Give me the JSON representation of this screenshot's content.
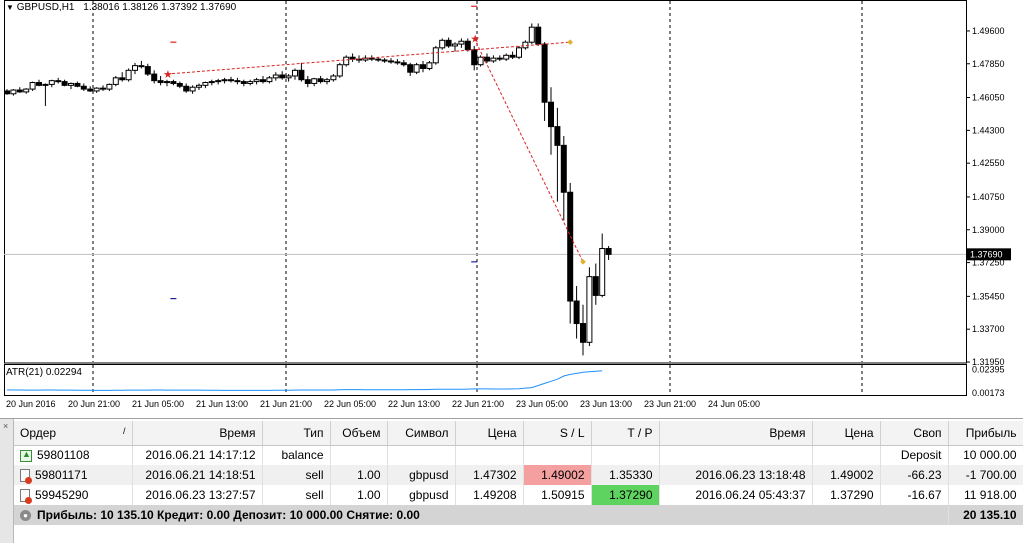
{
  "chart": {
    "symbol": "GBPUSD,H1",
    "ohlc": "1.38016 1.38126 1.37392 1.37690",
    "atr_label": "ATR(21) 0.02294",
    "current_price": "1.37690",
    "colors": {
      "bull_fill": "#ffffff",
      "bear_fill": "#000000",
      "candle_stroke": "#000000",
      "trade_line": "#dd2222",
      "bid_line": "#c0c0c0",
      "atr_line": "#1e90ff",
      "marker_buy": "#1e1ea0",
      "marker_sell": "#dd2222"
    }
  },
  "chart_data": {
    "type": "candlestick",
    "title": "GBPUSD,H1",
    "y_ticks": [
      "1.49600",
      "1.47850",
      "1.46050",
      "1.44300",
      "1.42550",
      "1.40750",
      "1.39000",
      "1.37250",
      "1.35450",
      "1.33700",
      "1.31950"
    ],
    "ylim": [
      1.3195,
      1.5045
    ],
    "x_ticks": [
      "20 Jun 2016",
      "20 Jun 21:00",
      "21 Jun 05:00",
      "21 Jun 13:00",
      "21 Jun 21:00",
      "22 Jun 05:00",
      "22 Jun 13:00",
      "22 Jun 21:00",
      "23 Jun 05:00",
      "23 Jun 13:00",
      "23 Jun 21:00",
      "24 Jun 05:00"
    ],
    "period_separators": [
      "20 Jun 21:00",
      "21 Jun 21:00",
      "22 Jun 21:00",
      "23 Jun 21:00"
    ],
    "atr_ticks": [
      "0.02395",
      "0.00173"
    ],
    "atr_range": [
      0.0,
      0.0256
    ],
    "candles": [
      [
        1.464,
        1.465,
        1.462,
        1.4625
      ],
      [
        1.4625,
        1.465,
        1.4615,
        1.4645
      ],
      [
        1.4645,
        1.466,
        1.463,
        1.4635
      ],
      [
        1.4635,
        1.4655,
        1.4625,
        1.465
      ],
      [
        1.465,
        1.469,
        1.464,
        1.4685
      ],
      [
        1.4685,
        1.47,
        1.4665,
        1.467
      ],
      [
        1.467,
        1.468,
        1.456,
        1.4675
      ],
      [
        1.4675,
        1.47,
        1.466,
        1.4695
      ],
      [
        1.4695,
        1.471,
        1.468,
        1.469
      ],
      [
        1.469,
        1.47,
        1.4665,
        1.467
      ],
      [
        1.467,
        1.4685,
        1.465,
        1.468
      ],
      [
        1.468,
        1.469,
        1.466,
        1.4665
      ],
      [
        1.4665,
        1.468,
        1.464,
        1.465
      ],
      [
        1.465,
        1.4665,
        1.4635,
        1.464
      ],
      [
        1.464,
        1.466,
        1.463,
        1.4655
      ],
      [
        1.4655,
        1.467,
        1.464,
        1.465
      ],
      [
        1.465,
        1.468,
        1.464,
        1.4675
      ],
      [
        1.4675,
        1.472,
        1.4665,
        1.471
      ],
      [
        1.471,
        1.474,
        1.469,
        1.47
      ],
      [
        1.47,
        1.476,
        1.469,
        1.475
      ],
      [
        1.475,
        1.479,
        1.473,
        1.4775
      ],
      [
        1.4775,
        1.48,
        1.476,
        1.477
      ],
      [
        1.477,
        1.4785,
        1.472,
        1.473
      ],
      [
        1.473,
        1.475,
        1.468,
        1.4695
      ],
      [
        1.4695,
        1.472,
        1.467,
        1.4685
      ],
      [
        1.4685,
        1.47,
        1.4665,
        1.469
      ],
      [
        1.469,
        1.47,
        1.467,
        1.468
      ],
      [
        1.468,
        1.469,
        1.4655,
        1.4665
      ],
      [
        1.4665,
        1.468,
        1.463,
        1.464
      ],
      [
        1.464,
        1.467,
        1.4625,
        1.466
      ],
      [
        1.466,
        1.468,
        1.4645,
        1.467
      ],
      [
        1.467,
        1.469,
        1.4655,
        1.4685
      ],
      [
        1.4685,
        1.47,
        1.467,
        1.469
      ],
      [
        1.469,
        1.4705,
        1.4675,
        1.4695
      ],
      [
        1.4695,
        1.471,
        1.468,
        1.47
      ],
      [
        1.47,
        1.4715,
        1.4685,
        1.4695
      ],
      [
        1.4695,
        1.471,
        1.4675,
        1.469
      ],
      [
        1.469,
        1.47,
        1.4665,
        1.468
      ],
      [
        1.468,
        1.47,
        1.467,
        1.469
      ],
      [
        1.469,
        1.471,
        1.4675,
        1.47
      ],
      [
        1.47,
        1.472,
        1.468,
        1.469
      ],
      [
        1.469,
        1.472,
        1.468,
        1.471
      ],
      [
        1.471,
        1.474,
        1.4695,
        1.4725
      ],
      [
        1.4725,
        1.4745,
        1.47,
        1.471
      ],
      [
        1.471,
        1.473,
        1.469,
        1.472
      ],
      [
        1.472,
        1.476,
        1.47,
        1.475
      ],
      [
        1.475,
        1.479,
        1.469,
        1.47
      ],
      [
        1.47,
        1.472,
        1.466,
        1.468
      ],
      [
        1.468,
        1.471,
        1.4665,
        1.4705
      ],
      [
        1.4705,
        1.472,
        1.468,
        1.469
      ],
      [
        1.469,
        1.471,
        1.4675,
        1.47
      ],
      [
        1.47,
        1.473,
        1.469,
        1.472
      ],
      [
        1.472,
        1.479,
        1.471,
        1.478
      ],
      [
        1.478,
        1.483,
        1.477,
        1.482
      ],
      [
        1.482,
        1.484,
        1.4795,
        1.481
      ],
      [
        1.481,
        1.483,
        1.479,
        1.4805
      ],
      [
        1.4805,
        1.483,
        1.4795,
        1.4815
      ],
      [
        1.4815,
        1.483,
        1.48,
        1.481
      ],
      [
        1.481,
        1.482,
        1.4795,
        1.4805
      ],
      [
        1.4805,
        1.4815,
        1.479,
        1.48
      ],
      [
        1.48,
        1.4815,
        1.4785,
        1.4795
      ],
      [
        1.4795,
        1.481,
        1.478,
        1.479
      ],
      [
        1.479,
        1.4805,
        1.477,
        1.478
      ],
      [
        1.478,
        1.479,
        1.472,
        1.474
      ],
      [
        1.474,
        1.479,
        1.473,
        1.478
      ],
      [
        1.478,
        1.48,
        1.474,
        1.476
      ],
      [
        1.476,
        1.48,
        1.475,
        1.479
      ],
      [
        1.479,
        1.488,
        1.478,
        1.487
      ],
      [
        1.487,
        1.492,
        1.486,
        1.491
      ],
      [
        1.491,
        1.4925,
        1.487,
        1.488
      ],
      [
        1.488,
        1.49,
        1.485,
        1.489
      ],
      [
        1.489,
        1.492,
        1.487,
        1.4905
      ],
      [
        1.4905,
        1.492,
        1.485,
        1.486
      ],
      [
        1.486,
        1.488,
        1.475,
        1.478
      ],
      [
        1.478,
        1.483,
        1.477,
        1.482
      ],
      [
        1.482,
        1.484,
        1.479,
        1.48
      ],
      [
        1.48,
        1.483,
        1.479,
        1.4815
      ],
      [
        1.4815,
        1.483,
        1.48,
        1.481
      ],
      [
        1.481,
        1.484,
        1.48,
        1.483
      ],
      [
        1.483,
        1.485,
        1.481,
        1.482
      ],
      [
        1.482,
        1.488,
        1.481,
        1.487
      ],
      [
        1.487,
        1.491,
        1.486,
        1.49
      ],
      [
        1.49,
        1.5,
        1.489,
        1.498
      ],
      [
        1.498,
        1.5,
        1.488,
        1.489
      ],
      [
        1.489,
        1.49,
        1.448,
        1.458
      ],
      [
        1.458,
        1.466,
        1.43,
        1.445
      ],
      [
        1.445,
        1.455,
        1.405,
        1.435
      ],
      [
        1.435,
        1.44,
        1.395,
        1.41
      ],
      [
        1.41,
        1.415,
        1.34,
        1.352
      ],
      [
        1.352,
        1.36,
        1.332,
        1.34
      ],
      [
        1.34,
        1.35,
        1.323,
        1.33
      ],
      [
        1.33,
        1.37,
        1.328,
        1.365
      ],
      [
        1.365,
        1.372,
        1.35,
        1.355
      ],
      [
        1.355,
        1.388,
        1.354,
        1.38
      ],
      [
        1.38,
        1.3813,
        1.3739,
        1.3769
      ]
    ],
    "atr_values": [
      0.0048,
      0.0047,
      0.0047,
      0.0046,
      0.0046,
      0.0046,
      0.0047,
      0.0047,
      0.0046,
      0.0046,
      0.0046,
      0.0045,
      0.0045,
      0.0045,
      0.0044,
      0.0044,
      0.0044,
      0.0045,
      0.0045,
      0.0046,
      0.0046,
      0.0046,
      0.0046,
      0.0047,
      0.0047,
      0.0046,
      0.0046,
      0.0046,
      0.0046,
      0.0046,
      0.0046,
      0.0045,
      0.0045,
      0.0045,
      0.0044,
      0.0044,
      0.0044,
      0.0044,
      0.0044,
      0.0044,
      0.0044,
      0.0044,
      0.0045,
      0.0045,
      0.0045,
      0.0046,
      0.0047,
      0.0047,
      0.0047,
      0.0047,
      0.0047,
      0.0047,
      0.005,
      0.0051,
      0.0051,
      0.0051,
      0.005,
      0.005,
      0.005,
      0.005,
      0.005,
      0.005,
      0.005,
      0.0051,
      0.0051,
      0.0051,
      0.0052,
      0.0054,
      0.0055,
      0.0055,
      0.0055,
      0.0055,
      0.0056,
      0.0058,
      0.0058,
      0.0058,
      0.0057,
      0.0057,
      0.0057,
      0.0058,
      0.006,
      0.0065,
      0.007,
      0.009,
      0.011,
      0.013,
      0.015,
      0.018,
      0.0195,
      0.0205,
      0.0215,
      0.022,
      0.0225,
      0.0229
    ],
    "trades": [
      {
        "from_index": 25,
        "from_price": 1.47302,
        "to_index": 88,
        "to_price": 1.49002,
        "kind": "sell"
      },
      {
        "from_index": 73,
        "from_price": 1.49208,
        "to_index": 90,
        "to_price": 1.3729,
        "kind": "sell"
      }
    ],
    "level_markers": [
      {
        "index": 26,
        "price": 1.49002,
        "kind": "sell"
      },
      {
        "index": 26,
        "price": 1.3533,
        "kind": "buy"
      },
      {
        "index": 73,
        "price": 1.50915,
        "kind": "sell"
      },
      {
        "index": 73,
        "price": 1.3729,
        "kind": "buy"
      }
    ]
  },
  "terminal": {
    "headers": [
      "Ордер",
      "/",
      "Время",
      "Тип",
      "Объем",
      "Символ",
      "Цена",
      "S / L",
      "T / P",
      "Время",
      "Цена",
      "Своп",
      "Прибыль"
    ],
    "rows": [
      {
        "icon": "balance",
        "order": "59801108",
        "time": "2016.06.21 14:17:12",
        "type": "balance",
        "comment": "Deposit",
        "profit": "10 000.00"
      },
      {
        "icon": "sell",
        "order": "59801171",
        "time": "2016.06.21 14:18:51",
        "type": "sell",
        "volume": "1.00",
        "symbol": "gbpusd",
        "price": "1.47302",
        "sl": "1.49002",
        "tp": "1.35330",
        "close_time": "2016.06.23 13:18:48",
        "close_price": "1.49002",
        "swap": "-66.23",
        "profit": "-1 700.00"
      },
      {
        "icon": "sell",
        "order": "59945290",
        "time": "2016.06.23 13:27:57",
        "type": "sell",
        "volume": "1.00",
        "symbol": "gbpusd",
        "price": "1.49208",
        "sl": "1.50915",
        "tp": "1.37290",
        "close_time": "2016.06.24 05:43:37",
        "close_price": "1.37290",
        "swap": "-16.67",
        "profit": "11 918.00"
      }
    ],
    "summary": {
      "text": "Прибыль: 10 135.10  Кредит: 0.00  Депозит: 10 000.00  Снятие: 0.00",
      "total": "20 135.10"
    },
    "close_label": "×"
  }
}
